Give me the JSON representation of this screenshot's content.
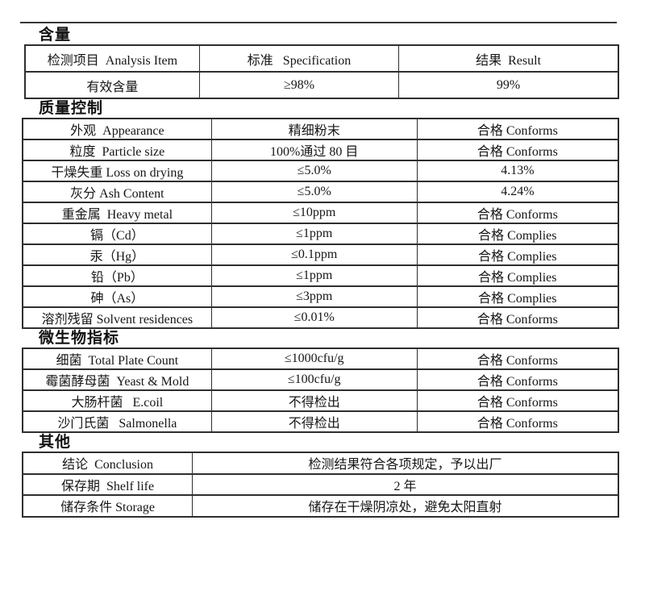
{
  "page": {
    "background_color": "#ffffff",
    "text_color": "#161616",
    "border_color": "#2e2e2e"
  },
  "sections": [
    {
      "heading": "含量",
      "table": {
        "header_rows": [
          [
            "检测项目  Analysis Item",
            "标准   Specification",
            "结果  Result"
          ]
        ],
        "rows": [
          [
            "有效含量",
            "≥98%",
            "99%"
          ]
        ]
      }
    },
    {
      "heading": "质量控制",
      "table": {
        "rows": [
          [
            "外观  Appearance",
            "精细粉末",
            "合格 Conforms"
          ],
          [
            "粒度  Particle size",
            "100%通过 80 目",
            "合格 Conforms"
          ],
          [
            "干燥失重 Loss on drying",
            "≤5.0%",
            "4.13%"
          ],
          [
            "灰分 Ash Content",
            "≤5.0%",
            "4.24%"
          ],
          [
            "重金属  Heavy metal",
            "≤10ppm",
            "合格 Conforms"
          ],
          [
            "镉（Cd）",
            "≤1ppm",
            "合格 Complies"
          ],
          [
            "汞（Hg）",
            "≤0.1ppm",
            "合格 Complies"
          ],
          [
            "铅（Pb）",
            "≤1ppm",
            "合格 Complies"
          ],
          [
            "砷（As）",
            "≤3ppm",
            "合格 Complies"
          ],
          [
            "溶剂残留 Solvent residences",
            "≤0.01%",
            "合格 Conforms"
          ]
        ]
      }
    },
    {
      "heading": "微生物指标",
      "table": {
        "rows": [
          [
            "细菌  Total Plate Count",
            "≤1000cfu/g",
            "合格 Conforms"
          ],
          [
            "霉菌酵母菌  Yeast & Mold",
            "≤100cfu/g",
            "合格 Conforms"
          ],
          [
            "大肠杆菌   E.coil",
            "不得检出",
            "合格 Conforms"
          ],
          [
            "沙门氏菌   Salmonella",
            "不得检出",
            "合格 Conforms"
          ]
        ]
      }
    },
    {
      "heading": "其他",
      "table": {
        "rows": [
          [
            "结论  Conclusion",
            "检测结果符合各项规定，予以出厂"
          ],
          [
            "保存期  Shelf life",
            "2 年"
          ],
          [
            "储存条件 Storage",
            "储存在干燥阴凉处，避免太阳直射"
          ]
        ]
      }
    }
  ]
}
